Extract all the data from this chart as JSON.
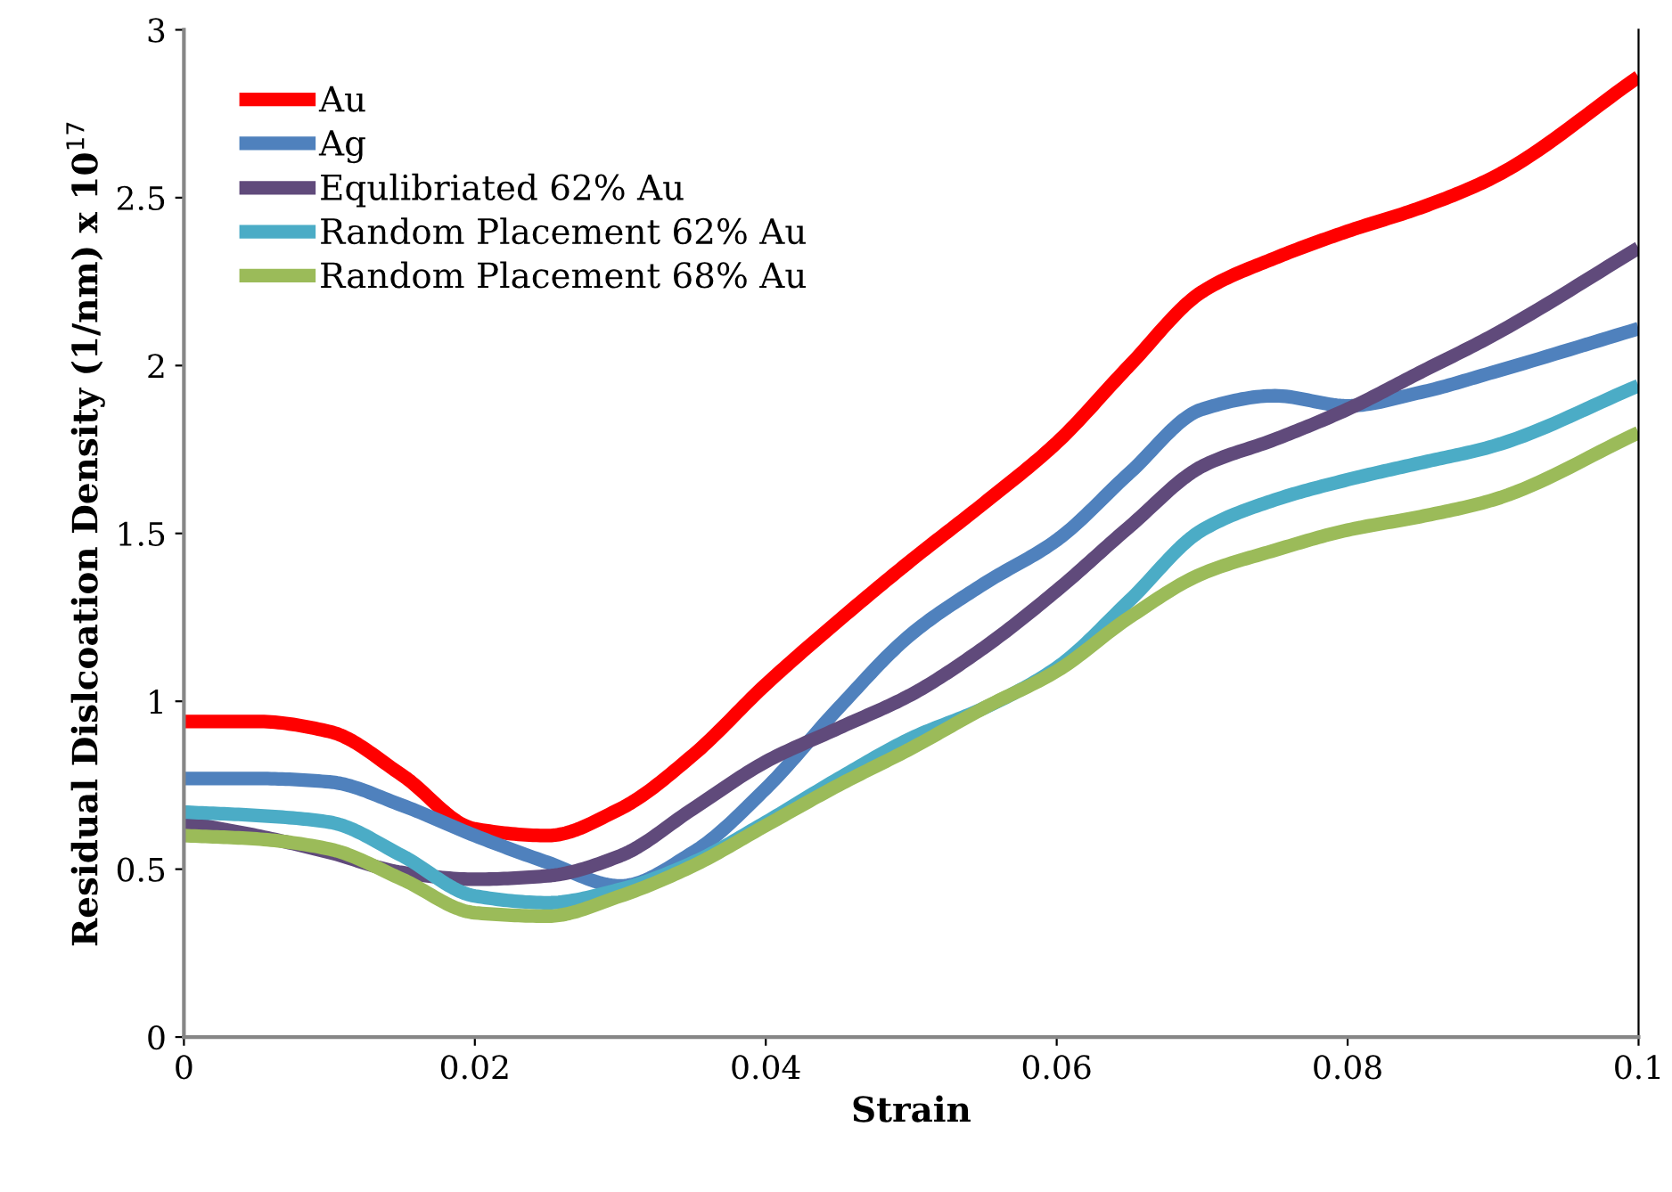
{
  "chart_data": {
    "type": "line",
    "xlabel": "Strain",
    "ylabel": "Residual Dislcoation Density (1/nm) x 10$^{17}$",
    "x": [
      0,
      0.005,
      0.01,
      0.015,
      0.02,
      0.025,
      0.03,
      0.035,
      0.04,
      0.045,
      0.05,
      0.055,
      0.06,
      0.065,
      0.07,
      0.075,
      0.08,
      0.085,
      0.09,
      0.1
    ],
    "series": [
      {
        "name": "Au",
        "color": "#ff0000",
        "values": [
          0.94,
          0.94,
          0.91,
          0.78,
          0.62,
          0.6,
          0.68,
          0.84,
          1.05,
          1.24,
          1.42,
          1.59,
          1.77,
          2.0,
          2.22,
          2.32,
          2.4,
          2.47,
          2.56,
          2.86
        ]
      },
      {
        "name": "Ag",
        "color": "#4f81bd",
        "values": [
          0.77,
          0.77,
          0.76,
          0.69,
          0.6,
          0.52,
          0.45,
          0.55,
          0.74,
          0.98,
          1.2,
          1.35,
          1.48,
          1.68,
          1.87,
          1.91,
          1.88,
          1.92,
          1.98,
          2.11
        ]
      },
      {
        "name": "Equlibriated 62% Au",
        "color": "#604a7b",
        "values": [
          0.64,
          0.6,
          0.55,
          0.49,
          0.47,
          0.48,
          0.54,
          0.68,
          0.82,
          0.92,
          1.02,
          1.16,
          1.33,
          1.52,
          1.7,
          1.78,
          1.87,
          1.98,
          2.09,
          2.35
        ]
      },
      {
        "name": "Random Placement 62% Au",
        "color": "#4bacc6",
        "values": [
          0.67,
          0.66,
          0.64,
          0.54,
          0.42,
          0.4,
          0.44,
          0.52,
          0.64,
          0.77,
          0.89,
          0.98,
          1.1,
          1.3,
          1.51,
          1.6,
          1.66,
          1.71,
          1.76,
          1.94
        ]
      },
      {
        "name": "Random Placement 68% Au",
        "color": "#9bbb59",
        "values": [
          0.6,
          0.59,
          0.56,
          0.47,
          0.37,
          0.36,
          0.42,
          0.51,
          0.63,
          0.75,
          0.86,
          0.98,
          1.09,
          1.25,
          1.38,
          1.45,
          1.51,
          1.55,
          1.6,
          1.8
        ]
      }
    ],
    "xlim": [
      0,
      0.1
    ],
    "xticks": [
      0,
      0.02,
      0.04,
      0.06,
      0.08,
      0.1
    ],
    "ylim": [
      0,
      3
    ],
    "yticks": [
      0,
      0.5,
      1,
      1.5,
      2,
      2.5,
      3
    ],
    "grid": false,
    "legend": "top left",
    "marker": "none",
    "line_style": "solid"
  }
}
